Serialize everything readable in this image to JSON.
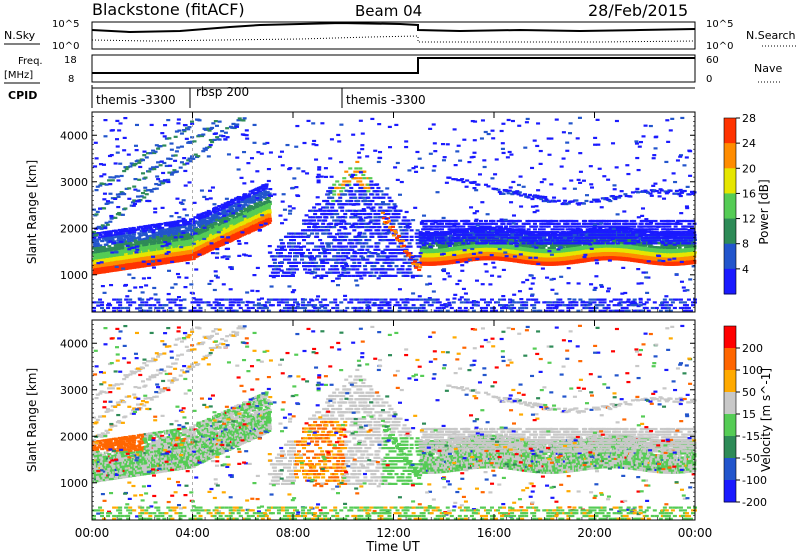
{
  "header": {
    "station": "Blackstone (fitACF)",
    "beam": "Beam 04",
    "date": "28/Feb/2015"
  },
  "top_panels": {
    "nsky": {
      "label": "N.Sky",
      "ticks_left": [
        "10^5",
        "10^0"
      ],
      "ticks_right": [
        "10^5",
        "10^0"
      ],
      "right_label": "N.Search"
    },
    "freq": {
      "label_top": "Freq.",
      "label_bottom": "[MHz]",
      "ticks_left": [
        "18",
        "8"
      ],
      "ticks_right": [
        "60",
        "0"
      ],
      "right_label": "Nave"
    },
    "cpid": {
      "label": "CPID",
      "segments": [
        {
          "name": "themis -3300",
          "start_hour": 0,
          "end_hour": 4
        },
        {
          "name": "rbsp 200",
          "start_hour": 4,
          "end_hour": 10
        },
        {
          "name": "themis -3300",
          "start_hour": 10,
          "end_hour": 24
        }
      ]
    }
  },
  "chart_data": [
    {
      "type": "heatmap",
      "title": "",
      "xlabel": "",
      "ylabel": "Slant Range [km]",
      "xlim": [
        0,
        24
      ],
      "ylim": [
        200,
        4500
      ],
      "yticks": [
        1000,
        2000,
        3000,
        4000
      ],
      "colorbar": {
        "label": "Power [dB]",
        "ticks": [
          "4",
          "8",
          "12",
          "16",
          "20",
          "24",
          "28"
        ],
        "colors": [
          "#1a1aff",
          "#2255cc",
          "#2e8b57",
          "#55cc55",
          "#e6e600",
          "#ff8c00",
          "#ff3300"
        ]
      },
      "features": [
        {
          "desc": "main echo band",
          "start_hour": 0,
          "end_hour": 13,
          "range_start_km": 1000,
          "range_end_km": 2200
        },
        {
          "desc": "main echo band",
          "start_hour": 13,
          "end_hour": 24,
          "range_start_km": 1200,
          "range_end_km": 1600
        }
      ]
    },
    {
      "type": "heatmap",
      "title": "",
      "xlabel": "Time UT",
      "ylabel": "Slant Range [km]",
      "xlim": [
        0,
        24
      ],
      "ylim": [
        200,
        4500
      ],
      "xticks": [
        "00:00",
        "04:00",
        "08:00",
        "12:00",
        "16:00",
        "20:00",
        "00:00"
      ],
      "yticks": [
        1000,
        2000,
        3000,
        4000
      ],
      "colorbar": {
        "label": "Velocity [m s^-1]",
        "ticks": [
          "200",
          "100",
          "50",
          "15",
          "-15",
          "-50",
          "-100",
          "-200"
        ],
        "colors": [
          "#1a1aff",
          "#2255cc",
          "#2e8b57",
          "#55cc55",
          "#c8c8c8",
          "#ffaa00",
          "#ff6600",
          "#ff0000"
        ]
      }
    }
  ]
}
